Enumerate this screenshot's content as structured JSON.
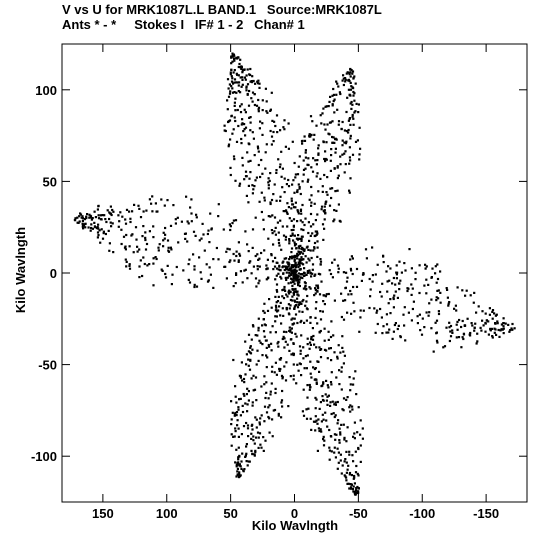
{
  "header": {
    "line1": "V vs U for MRK1087L.L BAND.1   Source:MRK1087L",
    "line2": "Ants * - *     Stokes I   IF# 1 - 2   Chan# 1"
  },
  "chart_data": {
    "type": "scatter",
    "title": "V vs U for MRK1087L.L BAND.1   Source:MRK1087L",
    "subtitle": "Ants * - *     Stokes I   IF# 1 - 2   Chan# 1",
    "xlabel": "Kilo Wavlngth",
    "ylabel": "Kilo Wavlngth",
    "xlim": [
      182,
      -182
    ],
    "ylim": [
      -125,
      125
    ],
    "x_ticks": [
      150,
      100,
      50,
      0,
      -50,
      -100,
      -150
    ],
    "y_ticks": [
      100,
      50,
      0,
      -50,
      -100
    ],
    "marker_color": "#000000",
    "arms": [
      {
        "angle_deg": 10,
        "extent": 175
      },
      {
        "angle_deg": 68,
        "extent": 130
      },
      {
        "angle_deg": 112,
        "extent": 120
      },
      {
        "angle_deg": 190,
        "extent": 175
      },
      {
        "angle_deg": 248,
        "extent": 130
      },
      {
        "angle_deg": 292,
        "extent": 120
      }
    ],
    "grid": false
  }
}
